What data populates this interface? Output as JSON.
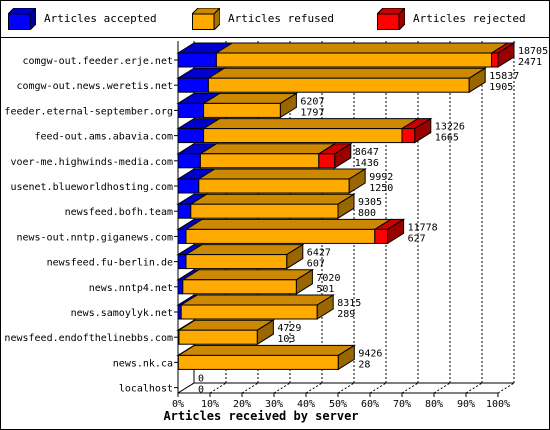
{
  "legend": {
    "items": [
      {
        "label": "Articles accepted",
        "color": "#0000ff"
      },
      {
        "label": "Articles refused",
        "color": "#ffaa00"
      },
      {
        "label": "Articles rejected",
        "color": "#ff0000"
      }
    ]
  },
  "chart_data": {
    "type": "bar",
    "orientation": "horizontal",
    "stacked": true,
    "three_d": true,
    "xlabel": "Articles received by server",
    "xlim": [
      0,
      100
    ],
    "x_unit": "%",
    "ticks": [
      "0%",
      "10%",
      "20%",
      "30%",
      "40%",
      "50%",
      "60%",
      "70%",
      "80%",
      "90%",
      "100%"
    ],
    "grid": "vertical dashed",
    "categories": [
      "comgw-out.feeder.erje.net",
      "comgw-out.news.weretis.net",
      "feeder.eternal-september.org",
      "feed-out.ams.abavia.com",
      "voer-me.highwinds-media.com",
      "usenet.blueworldhosting.com",
      "newsfeed.bofh.team",
      "news-out.nntp.giganews.com",
      "newsfeed.fu-berlin.de",
      "news.nntp4.net",
      "news.samoylyk.net",
      "newsfeed.endofthelinebbs.com",
      "news.nk.ca",
      "localhost"
    ],
    "annotations": [
      [
        "18705",
        "2471"
      ],
      [
        "15837",
        "1905"
      ],
      [
        "6207",
        "1797"
      ],
      [
        "13226",
        "1665"
      ],
      [
        "8647",
        "1436"
      ],
      [
        "9992",
        "1250"
      ],
      [
        "9305",
        "800"
      ],
      [
        "11778",
        "627"
      ],
      [
        "6427",
        "607"
      ],
      [
        "7020",
        "501"
      ],
      [
        "8315",
        "289"
      ],
      [
        "4729",
        "103"
      ],
      [
        "9426",
        "28"
      ],
      [
        "0",
        "0"
      ]
    ],
    "series": [
      {
        "name": "Articles accepted",
        "color": "#0000ff",
        "values": [
          12.0,
          9.5,
          8.0,
          8.0,
          7.0,
          6.5,
          4.0,
          2.5,
          2.5,
          1.5,
          1.0,
          0.3,
          0.1,
          0
        ]
      },
      {
        "name": "Articles refused",
        "color": "#ffaa00",
        "values": [
          86.0,
          81.5,
          24.0,
          62.0,
          37.0,
          47.0,
          46.0,
          59.0,
          31.5,
          35.5,
          42.5,
          24.5,
          50.0,
          0
        ]
      },
      {
        "name": "Articles rejected",
        "color": "#ff0000",
        "values": [
          2.0,
          0,
          0,
          4.0,
          5.0,
          0,
          0,
          4.0,
          0,
          0,
          0,
          0,
          0,
          0
        ]
      }
    ]
  }
}
